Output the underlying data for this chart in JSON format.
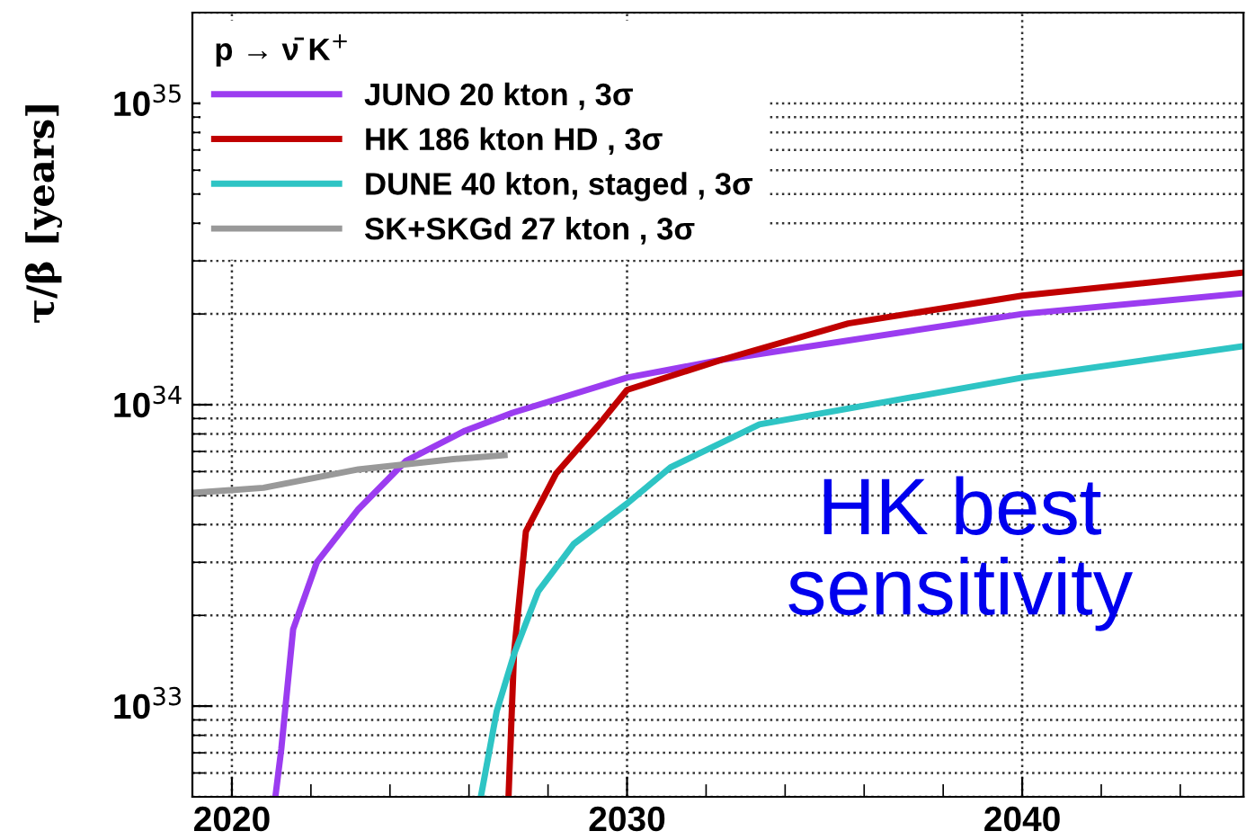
{
  "chart_data": {
    "type": "line",
    "ylabel": "τ/β [years]",
    "legend_title": "p → ν̄ K$^{+}$",
    "log": "y",
    "grid": true,
    "legend": "top left",
    "xlim": [
      2019,
      2045.6
    ],
    "xticks": [
      2020,
      2030,
      2040
    ],
    "ylim": [
      5e+32,
      2e+35
    ],
    "yticks": [
      {
        "value": 1e+33,
        "label": "10$^{33}$"
      },
      {
        "value": 1e+34,
        "label": "10$^{34}$"
      },
      {
        "value": 1e+35,
        "label": "10$^{35}$"
      }
    ],
    "series": [
      {
        "name": "JUNO 20 kton , 3σ",
        "color": "#9b3cf0",
        "x": [
          2021.1,
          2021.25,
          2021.55,
          2022.15,
          2023.2,
          2024.4,
          2025.9,
          2027.1,
          2030,
          2032.4,
          2040,
          2045.55
        ],
        "values": [
          5e+32,
          7.2e+32,
          1.8e+33,
          3e+33,
          4.5e+33,
          6.5e+33,
          8.2e+33,
          9.4e+33,
          1.23e+34,
          1.41e+34,
          2e+34,
          2.34e+34
        ]
      },
      {
        "name": "HK 186 kton HD , 3σ",
        "color": "#c00000",
        "x": [
          2027.0,
          2027.14,
          2027.44,
          2028.2,
          2029.26,
          2030.0,
          2032.4,
          2035.6,
          2040,
          2045.55
        ],
        "values": [
          5e+32,
          1.5e+33,
          3.8e+33,
          5.9e+33,
          8.5e+33,
          1.12e+34,
          1.41e+34,
          1.86e+34,
          2.3e+34,
          2.74e+34
        ]
      },
      {
        "name": "DUNE 40 kton, staged , 3σ",
        "color": "#2ec4c4",
        "x": [
          2026.3,
          2026.7,
          2027.15,
          2027.75,
          2028.65,
          2030.0,
          2031.1,
          2033.35,
          2040,
          2045.55
        ],
        "values": [
          5e+32,
          9.6e+32,
          1.5e+33,
          2.4e+33,
          3.45e+33,
          4.7e+33,
          6.2e+33,
          8.6e+33,
          1.23e+34,
          1.56e+34
        ]
      },
      {
        "name": "SK+SKGd 27 kton , 3σ",
        "color": "#999999",
        "x": [
          2019.0,
          2020.8,
          2023.2,
          2025.6,
          2026.9
        ],
        "values": [
          5.1e+33,
          5.3e+33,
          6.1e+33,
          6.6e+33,
          6.8e+33
        ]
      }
    ],
    "annotations": [
      "HK best sensitivity"
    ]
  }
}
